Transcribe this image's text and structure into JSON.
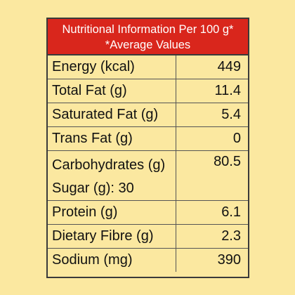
{
  "header": {
    "line1": "Nutritional Information Per 100 g*",
    "line2": "*Average Values"
  },
  "rows": [
    {
      "label": "Energy (kcal)",
      "value": "449"
    },
    {
      "label": "Total Fat (g)",
      "value": "11.4"
    },
    {
      "label": "Saturated Fat (g)",
      "value": "5.4"
    },
    {
      "label": "Trans Fat (g)",
      "value": "0"
    },
    {
      "label": "Carbohydrates (g)",
      "value": "80.5",
      "sublabel": "Sugar (g): 30"
    },
    {
      "label": "Protein (g)",
      "value": "6.1"
    },
    {
      "label": "Dietary Fibre (g)",
      "value": "2.3"
    },
    {
      "label": "Sodium (mg)",
      "value": "390"
    }
  ],
  "colors": {
    "background": "#fbe8a0",
    "header_background": "#d9261c",
    "header_text": "#ffffff"
  }
}
